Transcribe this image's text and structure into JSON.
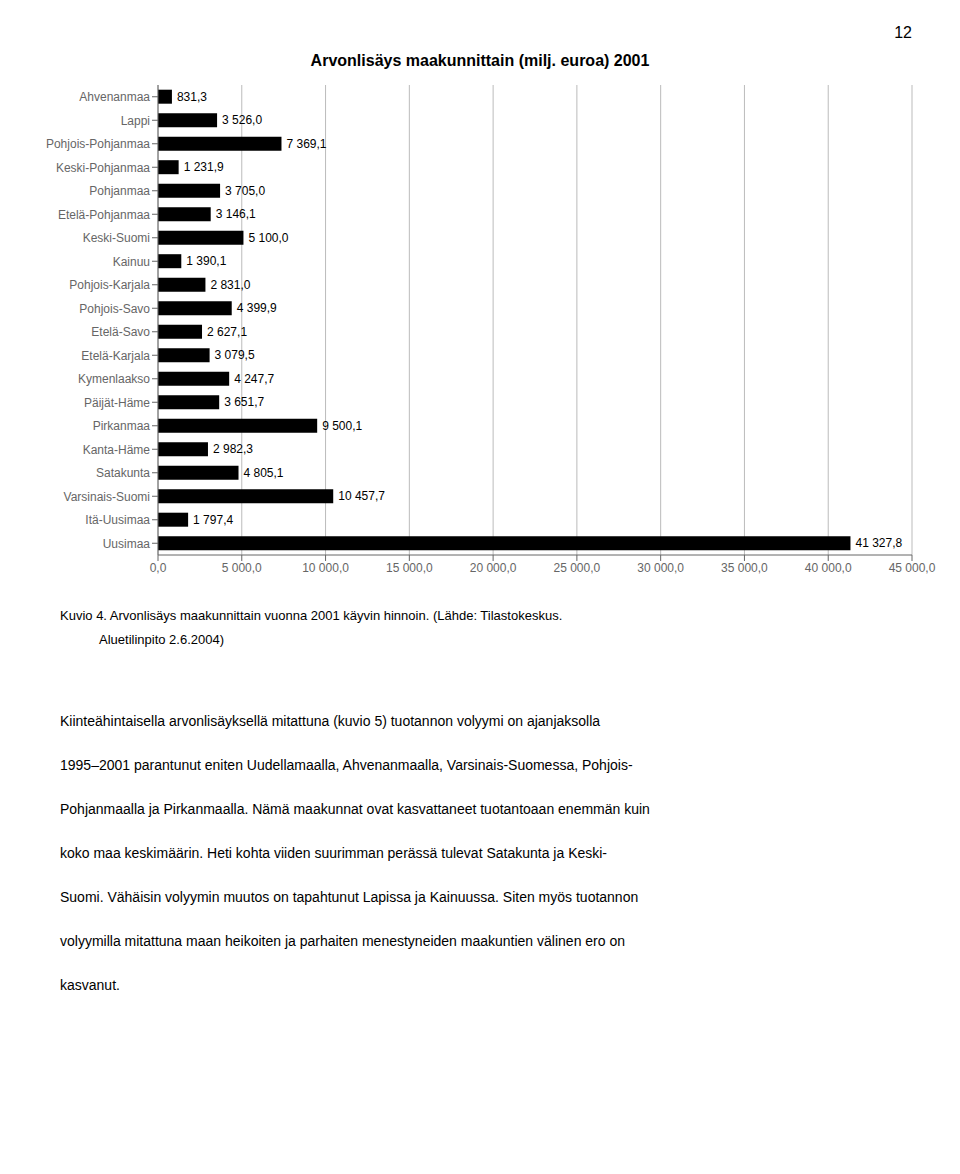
{
  "chart_data": {
    "type": "bar",
    "orientation": "horizontal",
    "title": "Arvonlisäys maakunnittain (milj. euroa) 2001",
    "categories": [
      "Ahvenanmaa",
      "Lappi",
      "Pohjois-Pohjanmaa",
      "Keski-Pohjanmaa",
      "Pohjanmaa",
      "Etelä-Pohjanmaa",
      "Keski-Suomi",
      "Kainuu",
      "Pohjois-Karjala",
      "Pohjois-Savo",
      "Etelä-Savo",
      "Etelä-Karjala",
      "Kymenlaakso",
      "Päijät-Häme",
      "Pirkanmaa",
      "Kanta-Häme",
      "Satakunta",
      "Varsinais-Suomi",
      "Itä-Uusimaa",
      "Uusimaa"
    ],
    "values": [
      831.3,
      3526.0,
      7369.1,
      1231.9,
      3705.0,
      3146.1,
      5100.0,
      1390.1,
      2831.0,
      4399.9,
      2627.1,
      3079.5,
      4247.7,
      3651.7,
      9500.1,
      2982.3,
      4805.1,
      10457.7,
      1797.4,
      41327.8
    ],
    "value_labels": [
      "831,3",
      "3 526,0",
      "7 369,1",
      "1 231,9",
      "3 705,0",
      "3 146,1",
      "5 100,0",
      "1 390,1",
      "2 831,0",
      "4 399,9",
      "2 627,1",
      "3 079,5",
      "4 247,7",
      "3 651,7",
      "9 500,1",
      "2 982,3",
      "4 805,1",
      "10 457,7",
      "1 797,4",
      "41 327,8"
    ],
    "data_labels": true,
    "color": "#000000",
    "xlim": [
      0,
      45000
    ],
    "xticks": [
      {
        "value": 0,
        "label": "0,0"
      },
      {
        "value": 5000,
        "label": "5 000,0"
      },
      {
        "value": 10000,
        "label": "10 000,0"
      },
      {
        "value": 15000,
        "label": "15 000,0"
      },
      {
        "value": 20000,
        "label": "20 000,0"
      },
      {
        "value": 25000,
        "label": "25 000,0"
      },
      {
        "value": 30000,
        "label": "30 000,0"
      },
      {
        "value": 35000,
        "label": "35 000,0"
      },
      {
        "value": 40000,
        "label": "40 000,0"
      },
      {
        "value": 45000,
        "label": "45 000,0"
      }
    ],
    "grid": true
  },
  "caption_lines": [
    "Kuvio 4. Arvonlisäys maakunnittain vuonna 2001 käyvin hinnoin. (Lähde: Tilastokeskus.",
    "           Aluetilinpito 2.6.2004)"
  ],
  "body_text_lines": [
    "Kiinteähintaisella arvonlisäyksellä mitattuna (kuvio 5) tuotannon volyymi on ajanjaksolla",
    "1995–2001 parantunut eniten Uudellamaalla, Ahvenanmaalla, Varsinais-Suomessa, Pohjois-",
    "Pohjanmaalla ja Pirkanmaalla. Nämä maakunnat ovat kasvattaneet tuotantoaan enemmän kuin",
    "koko maa keskimäärin. Heti kohta viiden suurimman perässä tulevat Satakunta ja Keski-",
    "Suomi. Vähäisin volyymin muutos on tapahtunut Lapissa ja Kainuussa. Siten myös tuotannon",
    "volyymilla mitattuna maan heikoiten ja parhaiten menestyneiden maakuntien välinen ero on",
    "kasvanut."
  ],
  "page_number": "12"
}
